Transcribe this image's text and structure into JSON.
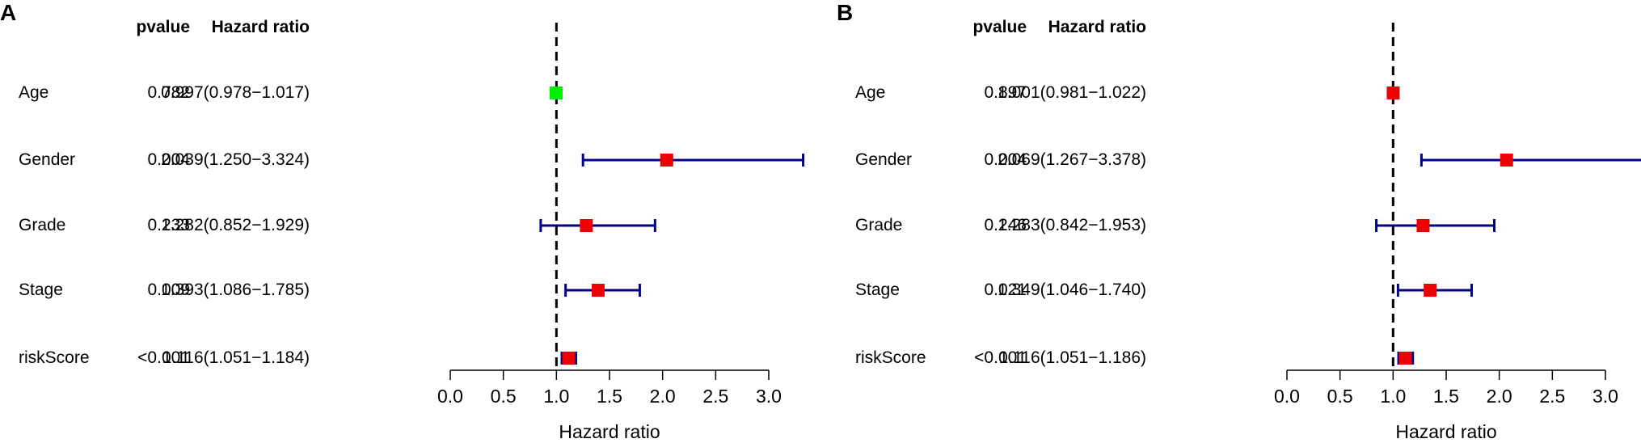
{
  "chart_data": [
    {
      "type": "forest",
      "panel_label": "A",
      "headers": {
        "pvalue": "pvalue",
        "hazard_ratio": "Hazard ratio"
      },
      "rows": [
        {
          "variable": "Age",
          "pvalue": "0.782",
          "hr_text": "0.997(0.978−1.017)",
          "hr": 0.997,
          "lower": 0.978,
          "upper": 1.017,
          "color": "#00ee00"
        },
        {
          "variable": "Gender",
          "pvalue": "0.004",
          "hr_text": "2.039(1.250−3.324)",
          "hr": 2.039,
          "lower": 1.25,
          "upper": 3.324,
          "color": "#ee0000"
        },
        {
          "variable": "Grade",
          "pvalue": "0.233",
          "hr_text": "1.282(0.852−1.929)",
          "hr": 1.282,
          "lower": 0.852,
          "upper": 1.929,
          "color": "#ee0000"
        },
        {
          "variable": "Stage",
          "pvalue": "0.009",
          "hr_text": "1.393(1.086−1.785)",
          "hr": 1.393,
          "lower": 1.086,
          "upper": 1.785,
          "color": "#ee0000"
        },
        {
          "variable": "riskScore",
          "pvalue": "<0.001",
          "hr_text": "1.116(1.051−1.184)",
          "hr": 1.116,
          "lower": 1.051,
          "upper": 1.184,
          "color": "#ee0000"
        }
      ],
      "xlim": [
        0,
        3.0
      ],
      "ticks": [
        0.0,
        0.5,
        1.0,
        1.5,
        2.0,
        2.5,
        3.0
      ],
      "tick_labels": [
        "0.0",
        "0.5",
        "1.0",
        "1.5",
        "2.0",
        "2.5",
        "3.0"
      ],
      "reference_line": 1.0,
      "xlabel": "Hazard ratio"
    },
    {
      "type": "forest",
      "panel_label": "B",
      "headers": {
        "pvalue": "pvalue",
        "hazard_ratio": "Hazard ratio"
      },
      "rows": [
        {
          "variable": "Age",
          "pvalue": "0.897",
          "hr_text": "1.001(0.981−1.022)",
          "hr": 1.001,
          "lower": 0.981,
          "upper": 1.022,
          "color": "#ee0000"
        },
        {
          "variable": "Gender",
          "pvalue": "0.004",
          "hr_text": "2.069(1.267−3.378)",
          "hr": 2.069,
          "lower": 1.267,
          "upper": 3.378,
          "color": "#ee0000"
        },
        {
          "variable": "Grade",
          "pvalue": "0.246",
          "hr_text": "1.283(0.842−1.953)",
          "hr": 1.283,
          "lower": 0.842,
          "upper": 1.953,
          "color": "#ee0000"
        },
        {
          "variable": "Stage",
          "pvalue": "0.021",
          "hr_text": "1.349(1.046−1.740)",
          "hr": 1.349,
          "lower": 1.046,
          "upper": 1.74,
          "color": "#ee0000"
        },
        {
          "variable": "riskScore",
          "pvalue": "<0.001",
          "hr_text": "1.116(1.051−1.186)",
          "hr": 1.116,
          "lower": 1.051,
          "upper": 1.186,
          "color": "#ee0000"
        }
      ],
      "xlim": [
        0,
        3.0
      ],
      "ticks": [
        0.0,
        0.5,
        1.0,
        1.5,
        2.0,
        2.5,
        3.0
      ],
      "tick_labels": [
        "0.0",
        "0.5",
        "1.0",
        "1.5",
        "2.0",
        "2.5",
        "3.0"
      ],
      "reference_line": 1.0,
      "xlabel": "Hazard ratio"
    }
  ],
  "style": {
    "ci_color": "#00008b",
    "axis_color": "#000000"
  }
}
